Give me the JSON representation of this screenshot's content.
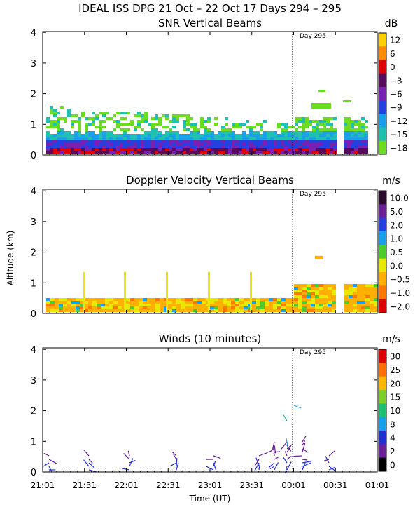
{
  "header": {
    "title": "IDEAL ISS DPG  21 Oct – 22 Oct 17 Days 294 – 295"
  },
  "chart_data": [
    {
      "type": "heatmap",
      "title": "SNR Vertical Beams",
      "ylabel": "",
      "ylim": [
        0,
        4
      ],
      "yticks": [
        "0",
        "1",
        "2",
        "3",
        "4"
      ],
      "day_marker": "Day 295",
      "colorbar": {
        "unit": "dB",
        "labels": [
          "12",
          "6",
          "0",
          "−3",
          "−6",
          "−9",
          "−12",
          "−15",
          "−18"
        ],
        "colors": [
          "#ffd000",
          "#ff8c00",
          "#e00000",
          "#5a0a5a",
          "#7a1fb0",
          "#2540e0",
          "#1aa0e8",
          "#20c0b0",
          "#6cdc20"
        ]
      }
    },
    {
      "type": "heatmap",
      "title": "Doppler Velocity Vertical Beams",
      "ylabel": "Altitude (km)",
      "ylim": [
        0,
        4
      ],
      "yticks": [
        "0",
        "1",
        "2",
        "3",
        "4"
      ],
      "day_marker": "Day 295",
      "colorbar": {
        "unit": "m/s",
        "labels": [
          "10.0",
          "5.0",
          "2.0",
          "1.0",
          "0.5",
          "0.0",
          "−0.5",
          "−1.0",
          "−2.0"
        ],
        "colors": [
          "#2a0a2a",
          "#6a1f9a",
          "#2040e0",
          "#1aa0e8",
          "#4ccc30",
          "#e8e800",
          "#ffb000",
          "#ff7800",
          "#e00000"
        ]
      }
    },
    {
      "type": "scatter",
      "title": "Winds (10 minutes)",
      "ylabel": "",
      "ylim": [
        0,
        4
      ],
      "yticks": [
        "0",
        "1",
        "2",
        "3",
        "4"
      ],
      "day_marker": "Day 295",
      "xlabel": "Time (UT)",
      "x_tick_labels": [
        "21:01",
        "21:31",
        "22:01",
        "22:31",
        "23:01",
        "23:31",
        "00:01",
        "00:31",
        "01:01"
      ],
      "colorbar": {
        "unit": "m/s",
        "labels": [
          "30",
          "25",
          "20",
          "15",
          "10",
          "8",
          "4",
          "2",
          "0"
        ],
        "colors": [
          "#e00000",
          "#ff7000",
          "#ffb800",
          "#7ad028",
          "#20c070",
          "#1aa0e8",
          "#2030d0",
          "#6a1f9a",
          "#000000"
        ]
      }
    }
  ]
}
